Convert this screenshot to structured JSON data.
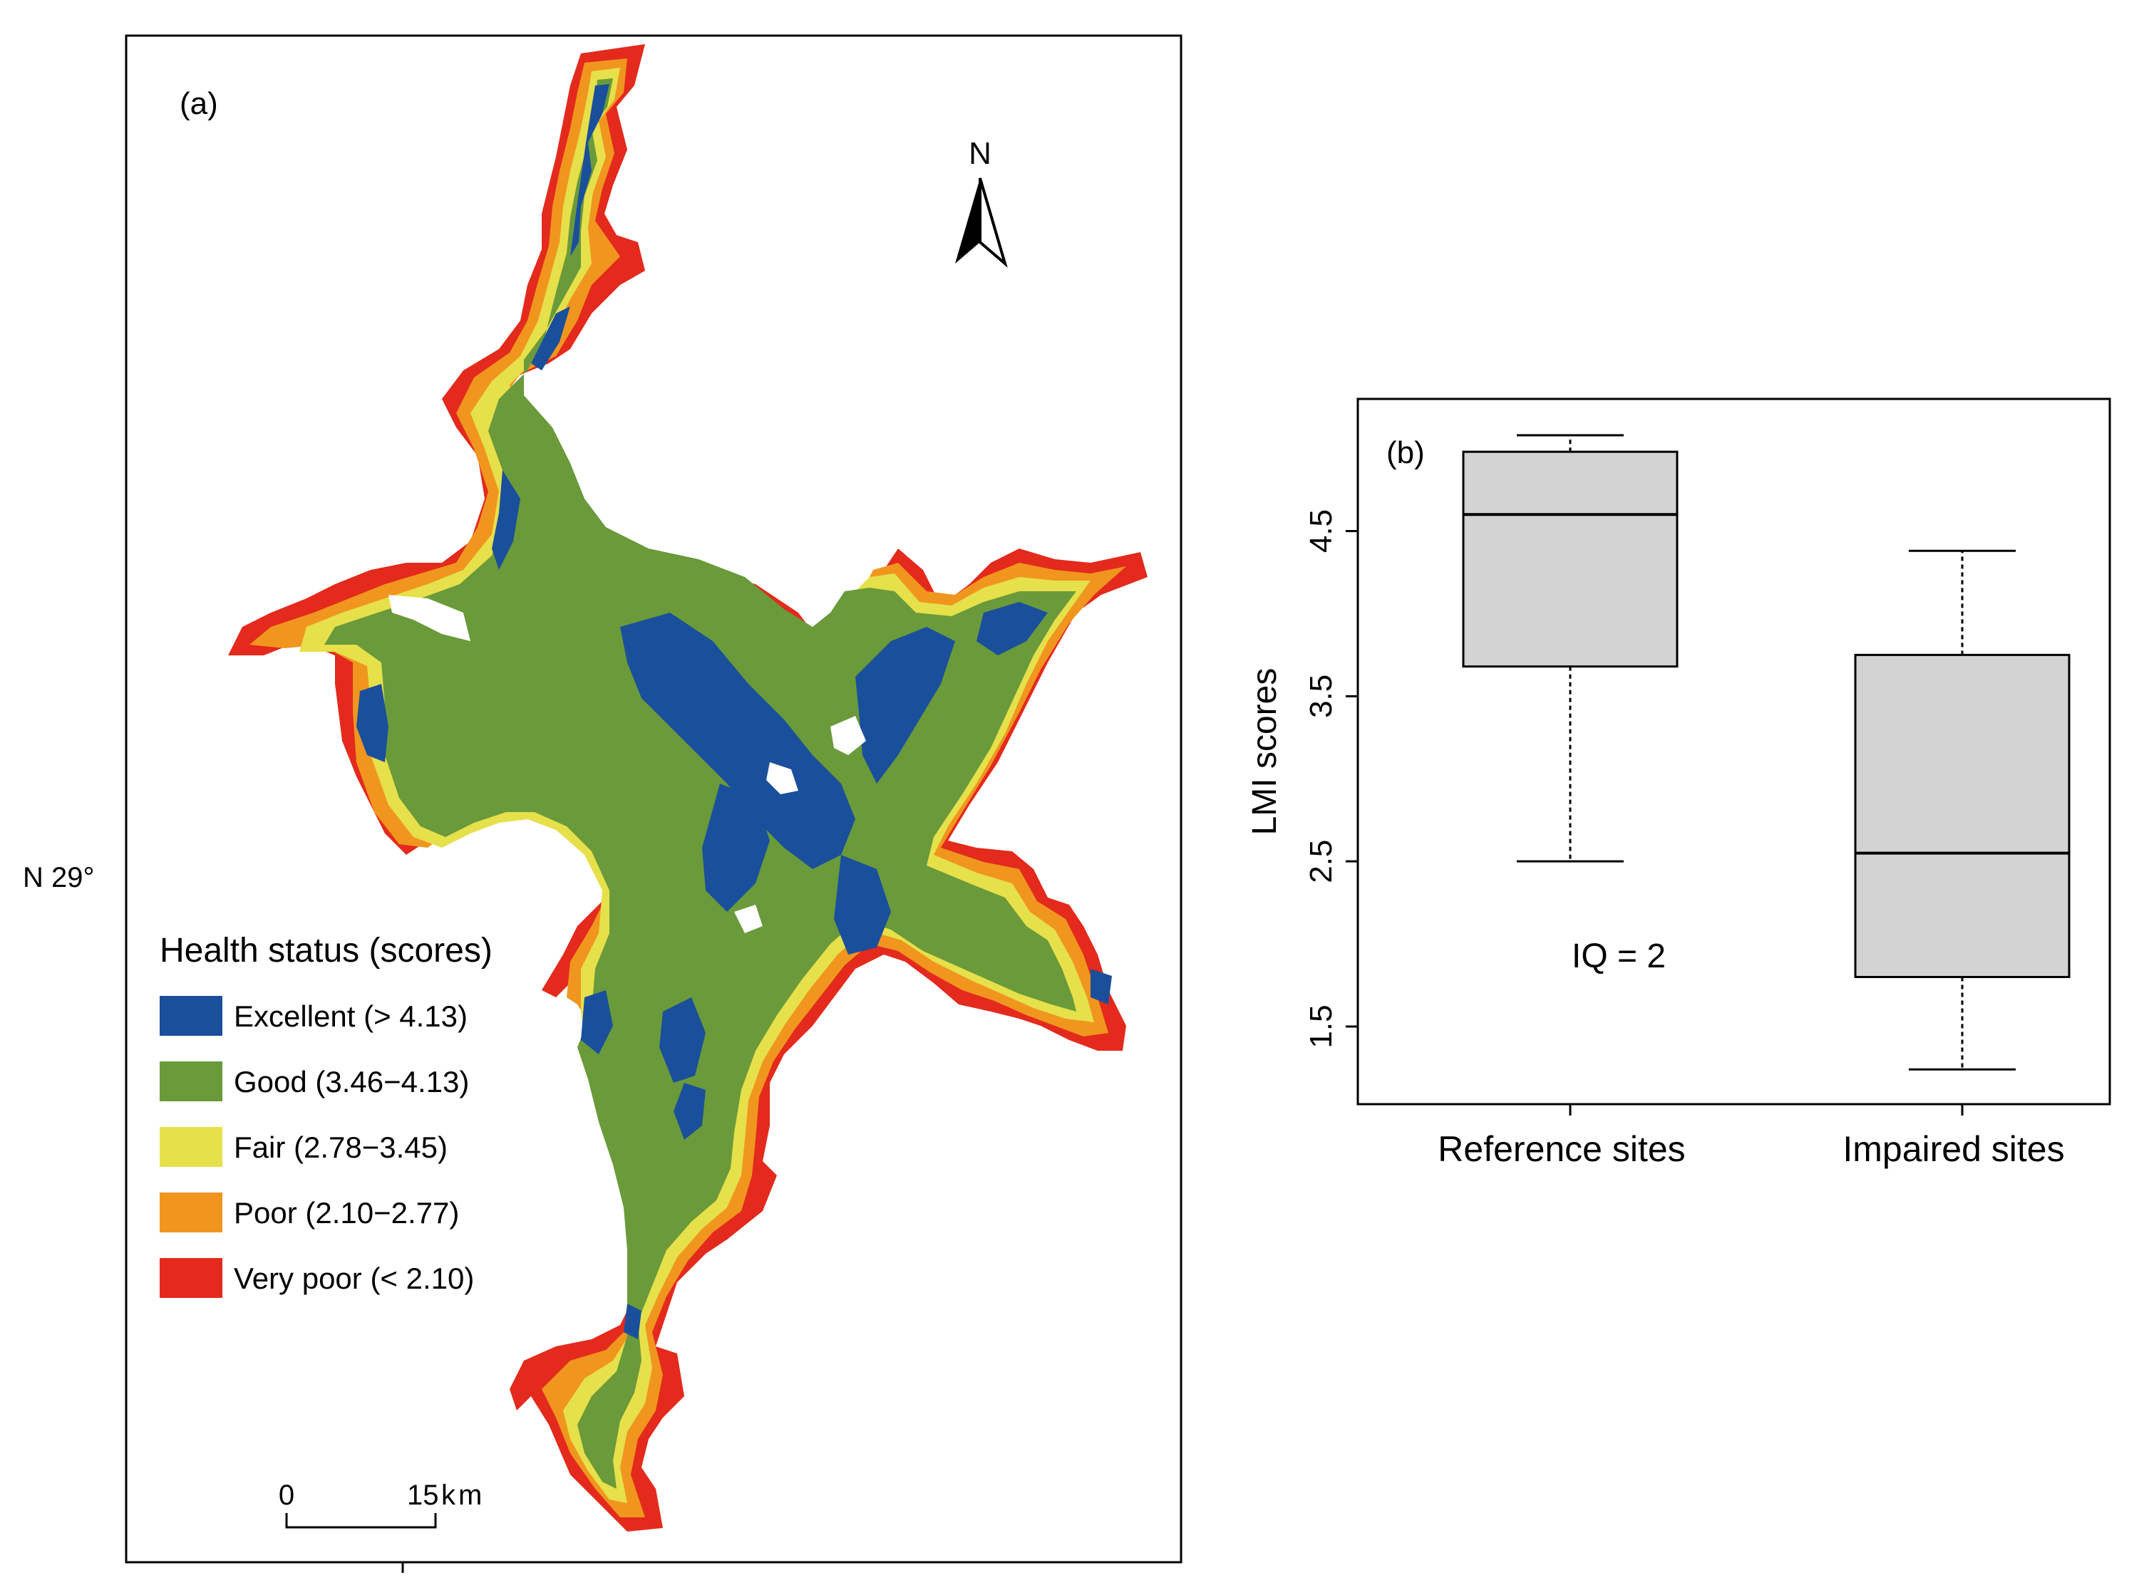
{
  "panel_a": {
    "label": "(a)",
    "north_label": "N",
    "lat_label": "N 29°",
    "legend": {
      "title": "Health status (scores)",
      "items": [
        {
          "label": "Excellent (> 4.13)",
          "color": "#1a4f9c"
        },
        {
          "label": "Good (3.46−4.13)",
          "color": "#6a9a3a"
        },
        {
          "label": "Fair (2.78−3.45)",
          "color": "#e6e04a"
        },
        {
          "label": "Poor (2.10−2.77)",
          "color": "#f0961e"
        },
        {
          "label": "Very poor (< 2.10)",
          "color": "#e32a1c"
        }
      ]
    },
    "scale_bar": {
      "start_label": "0",
      "end_label": "15",
      "unit": "km"
    }
  },
  "panel_b": {
    "label": "(b)",
    "annotation": "IQ = 2",
    "chart_data": {
      "type": "box",
      "ylabel": "LMI scores",
      "categories": [
        "Reference sites",
        "Impaired sites"
      ],
      "yticks": [
        1.5,
        2.5,
        3.5,
        4.5
      ],
      "ylim": [
        1.03,
        5.3
      ],
      "series": [
        {
          "whisker_low": 2.5,
          "q1": 3.68,
          "median": 4.6,
          "q3": 4.98,
          "whisker_high": 5.08
        },
        {
          "whisker_low": 1.24,
          "q1": 1.8,
          "median": 2.55,
          "q3": 3.75,
          "whisker_high": 4.38
        }
      ],
      "box_color": "#d3d3d3"
    }
  }
}
